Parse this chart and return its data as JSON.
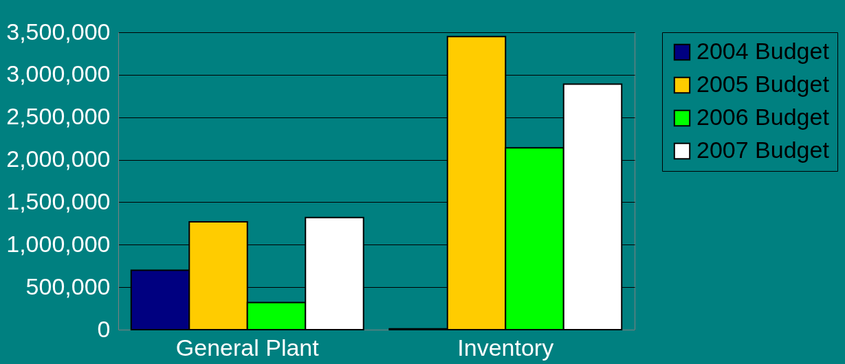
{
  "chart_data": {
    "type": "bar",
    "categories": [
      "General Plant",
      "Inventory"
    ],
    "series": [
      {
        "name": "2004 Budget",
        "color": "#000080",
        "values": [
          700000,
          10000
        ]
      },
      {
        "name": "2005 Budget",
        "color": "#ffcc00",
        "values": [
          1270000,
          3450000
        ]
      },
      {
        "name": "2006 Budget",
        "color": "#00ff00",
        "values": [
          320000,
          2140000
        ]
      },
      {
        "name": "2007 Budget",
        "color": "#ffffff",
        "values": [
          1320000,
          2890000
        ]
      }
    ],
    "ylim": [
      0,
      3500000
    ],
    "yticks": [
      0,
      {
        "value": 500000,
        "label": "500,000"
      },
      {
        "value": 1000000,
        "label": "1,000,000"
      },
      {
        "value": 1500000,
        "label": "1,500,000"
      },
      {
        "value": 2000000,
        "label": "2,000,000"
      },
      {
        "value": 2500000,
        "label": "2,500,000"
      },
      {
        "value": 3000000,
        "label": "3,000,000"
      },
      {
        "value": 3500000,
        "label": "3,500,000"
      }
    ],
    "grid": "y",
    "legend": "right"
  }
}
